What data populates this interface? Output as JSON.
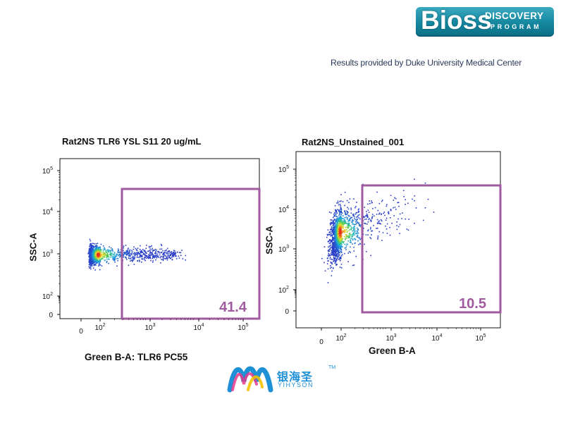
{
  "brand": {
    "logo_word": "Bioss",
    "logo_line1": "DISCOVERY",
    "logo_line2": "PROGRAM",
    "colors": {
      "logo_bg": "#13879f",
      "logo_text": "#ffffff"
    }
  },
  "credit": "Results provided by Duke University Medical Center",
  "watermark": {
    "name_cn": "银海圣",
    "name_en": "YIHYSON",
    "tm": "TM"
  },
  "chart_data": [
    {
      "type": "scatter",
      "title": "Rat2NS TLR6 YSL S11 20 ug/mL",
      "xlabel": "Green B-A: TLR6 PC55",
      "ylabel": "SSC-A",
      "x_scale": "biexponential",
      "y_scale": "biexponential",
      "x_ticks": [
        "0",
        "10^2",
        "10^3",
        "10^4",
        "10^5"
      ],
      "y_ticks": [
        "0",
        "10^2",
        "10^3",
        "10^4",
        "10^5"
      ],
      "gate": {
        "label": "41.4",
        "x_min_decade": 2.4,
        "y_range_decades": [
          0.5,
          4.5
        ],
        "percent": 41.4
      },
      "population": {
        "x_center_decade": 1.8,
        "x_spread": 2.7,
        "y_center_decade": 3.0,
        "y_spread": 0.12
      },
      "gate_color": "#a05aa0"
    },
    {
      "type": "scatter",
      "title": "Rat2NS_Unstained_001",
      "xlabel": "Green B-A",
      "ylabel": "SSC-A",
      "x_scale": "biexponential",
      "y_scale": "biexponential",
      "x_ticks": [
        "0",
        "10^2",
        "10^3",
        "10^4",
        "10^5"
      ],
      "y_ticks": [
        "0",
        "10^2",
        "10^3",
        "10^4",
        "10^5"
      ],
      "gate": {
        "label": "10.5",
        "x_min_decade": 2.4,
        "y_range_decades": [
          0.5,
          4.5
        ],
        "percent": 10.5
      },
      "population": {
        "x_center_decade": 1.7,
        "x_spread": 0.45,
        "y_center_decade": 3.4,
        "y_spread": 0.3
      },
      "gate_color": "#a05aa0"
    }
  ]
}
